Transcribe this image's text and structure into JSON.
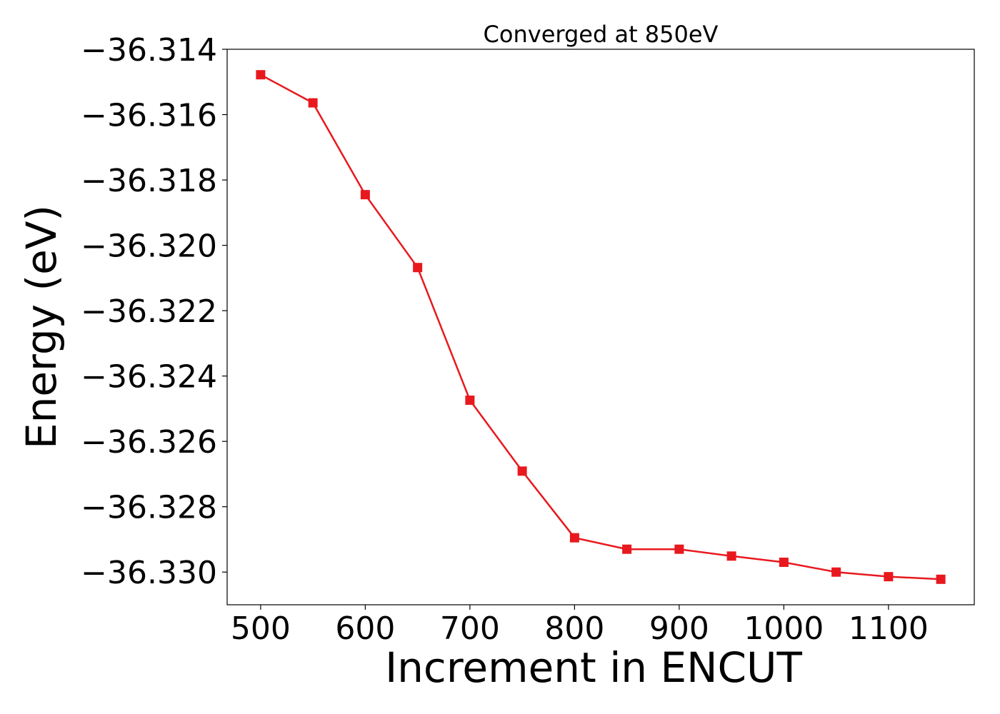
{
  "chart_data": {
    "type": "line",
    "title": "Converged at 850eV",
    "xlabel": "Increment in ENCUT",
    "ylabel": "Energy (eV)",
    "xlim": [
      468,
      1182
    ],
    "ylim": [
      -36.331,
      -36.314
    ],
    "x_ticks": [
      500,
      600,
      700,
      800,
      900,
      1000,
      1100
    ],
    "x_tick_labels": [
      "500",
      "600",
      "700",
      "800",
      "900",
      "1000",
      "1100"
    ],
    "y_ticks": [
      -36.314,
      -36.316,
      -36.318,
      -36.32,
      -36.322,
      -36.324,
      -36.326,
      -36.328,
      -36.33
    ],
    "y_tick_labels": [
      "−36.314",
      "−36.316",
      "−36.318",
      "−36.320",
      "−36.322",
      "−36.324",
      "−36.326",
      "−36.328",
      "−36.330"
    ],
    "grid": false,
    "series": [
      {
        "color": "#e8191e",
        "marker": "square",
        "x": [
          500,
          550,
          600,
          650,
          700,
          750,
          800,
          850,
          900,
          950,
          1000,
          1050,
          1100,
          1150
        ],
        "y": [
          -36.31478,
          -36.31564,
          -36.31845,
          -36.32068,
          -36.32474,
          -36.32691,
          -36.32895,
          -36.3293,
          -36.3293,
          -36.32951,
          -36.3297,
          -36.33,
          -36.33014,
          -36.33022
        ]
      }
    ]
  }
}
